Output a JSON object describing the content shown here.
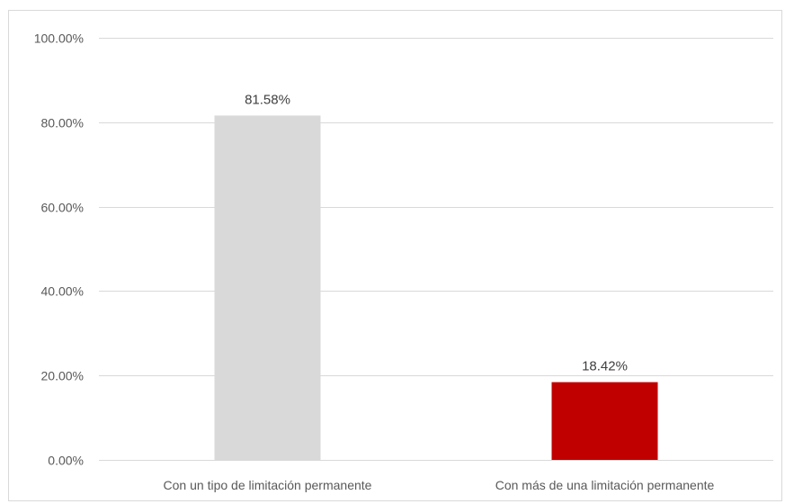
{
  "chart_data": {
    "type": "bar",
    "title": "",
    "xlabel": "",
    "ylabel": "",
    "categories": [
      "Con un tipo de limitación permanente",
      "Con más de una limitación permanente"
    ],
    "values": [
      81.58,
      18.42
    ],
    "data_labels": [
      "81.58%",
      "18.42%"
    ],
    "bar_colors": [
      "#d9d9d9",
      "#c00000"
    ],
    "ylim": [
      0,
      100
    ],
    "y_ticks": [
      0,
      20,
      40,
      60,
      80,
      100
    ],
    "y_tick_labels": [
      "0.00%",
      "20.00%",
      "40.00%",
      "60.00%",
      "80.00%",
      "100.00%"
    ],
    "grid": true,
    "legend": "none"
  }
}
